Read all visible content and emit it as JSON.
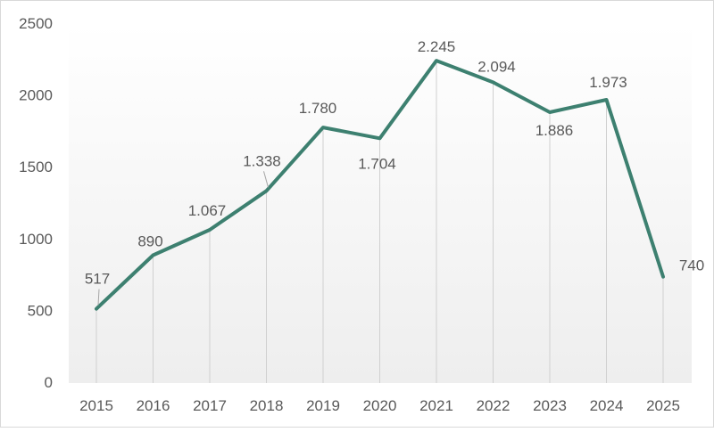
{
  "chart_data": {
    "type": "line",
    "title": "",
    "xlabel": "",
    "ylabel": "",
    "categories": [
      "2015",
      "2016",
      "2017",
      "2018",
      "2019",
      "2020",
      "2021",
      "2022",
      "2023",
      "2024",
      "2025"
    ],
    "series": [
      {
        "values": [
          517,
          890,
          1067,
          1338,
          1780,
          1704,
          2245,
          2094,
          1886,
          1973,
          740
        ],
        "labels": [
          "517",
          "890",
          "1.067",
          "1.338",
          "1.780",
          "1.704",
          "2.245",
          "2.094",
          "1.886",
          "1.973",
          "740"
        ],
        "color": "#3d8070"
      }
    ],
    "ylim": [
      0,
      2500
    ],
    "yticks": [
      "0",
      "500",
      "1000",
      "1500",
      "2000",
      "2500"
    ],
    "grid": false,
    "drop_lines": true,
    "legend": "none"
  }
}
